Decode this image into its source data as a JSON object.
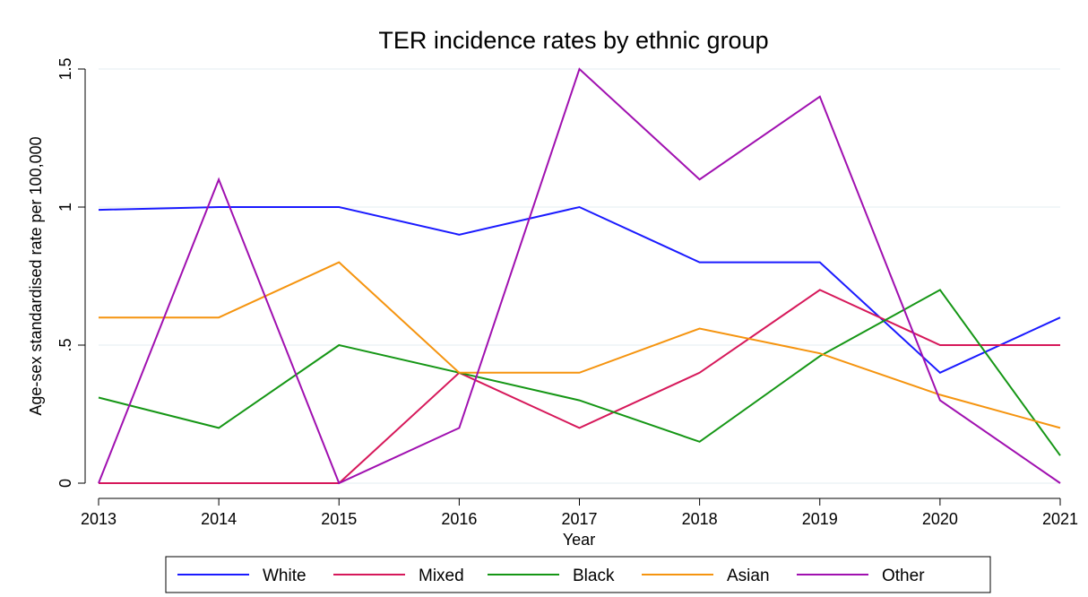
{
  "chart_data": {
    "type": "line",
    "title": "TER incidence rates by ethnic group",
    "xlabel": "Year",
    "ylabel": "Age-sex standardised rate per 100,000",
    "x": [
      2013,
      2014,
      2015,
      2016,
      2017,
      2018,
      2019,
      2020,
      2021
    ],
    "xticks": [
      "2013",
      "2014",
      "2015",
      "2016",
      "2017",
      "2018",
      "2019",
      "2020",
      "2021"
    ],
    "yticks": [
      {
        "value": 0,
        "label": "0"
      },
      {
        "value": 0.5,
        "label": ".5"
      },
      {
        "value": 1,
        "label": "1"
      },
      {
        "value": 1.5,
        "label": "1.5"
      }
    ],
    "ylim": [
      0,
      1.5
    ],
    "grid": "horizontal",
    "legend_position": "bottom",
    "series": [
      {
        "name": "White",
        "color": "#1a1aff",
        "values": [
          0.99,
          1.0,
          1.0,
          0.9,
          1.0,
          0.8,
          0.8,
          0.4,
          0.6
        ]
      },
      {
        "name": "Mixed",
        "color": "#d6185a",
        "values": [
          0,
          0,
          0,
          0.4,
          0.2,
          0.4,
          0.7,
          0.5,
          0.5
        ]
      },
      {
        "name": "Black",
        "color": "#159615",
        "values": [
          0.31,
          0.2,
          0.5,
          0.4,
          0.3,
          0.15,
          0.46,
          0.7,
          0.1
        ]
      },
      {
        "name": "Asian",
        "color": "#f5940f",
        "values": [
          0.6,
          0.6,
          0.8,
          0.4,
          0.4,
          0.56,
          0.47,
          0.32,
          0.2
        ]
      },
      {
        "name": "Other",
        "color": "#a010b0",
        "values": [
          0,
          1.1,
          0,
          0.2,
          1.5,
          1.1,
          1.4,
          0.3,
          0
        ]
      }
    ]
  }
}
